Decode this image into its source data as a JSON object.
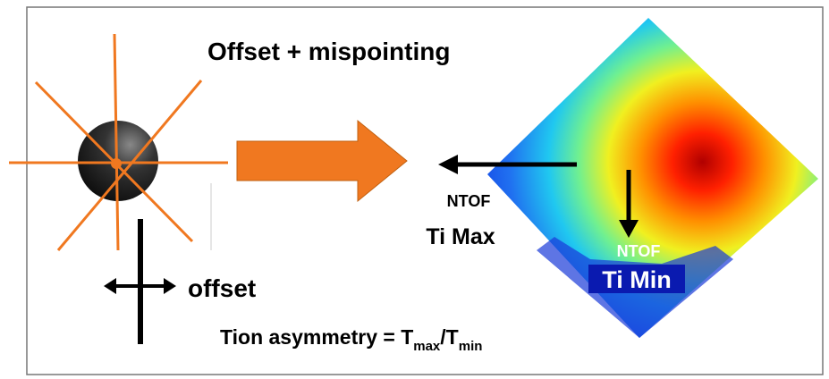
{
  "title": "Offset + mispointing",
  "ntof_max": {
    "label": "NTOF",
    "value": "Ti Max"
  },
  "ntof_min": {
    "label": "NTOF",
    "value": "Ti Min"
  },
  "offset_label": "offset",
  "formula": {
    "prefix": "Tion asymmetry = T",
    "sub_max": "max",
    "mid": "/T",
    "sub_min": "min"
  }
}
